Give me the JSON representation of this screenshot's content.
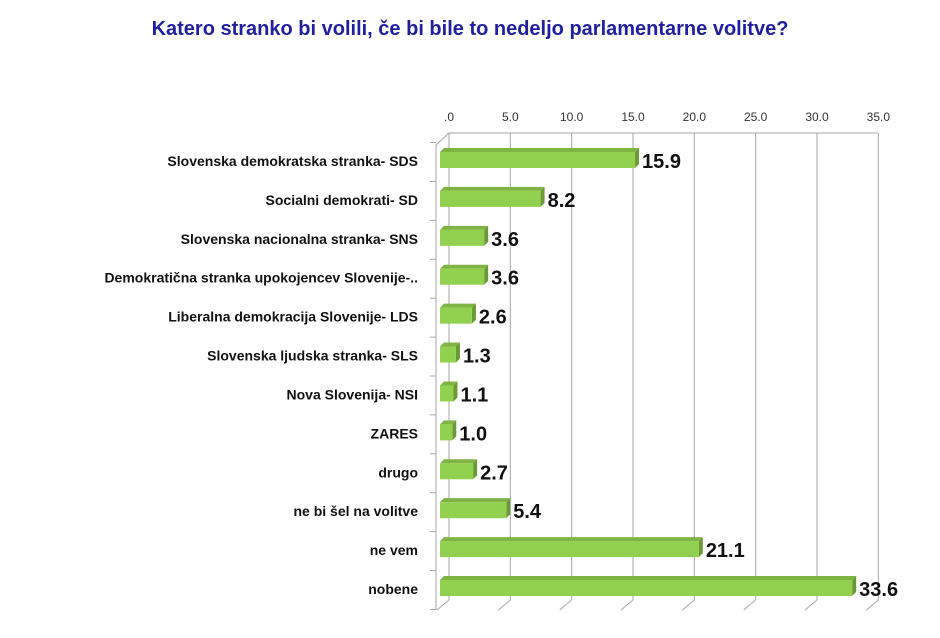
{
  "chart_data": {
    "type": "bar",
    "orientation": "horizontal",
    "title": "Katero stranko bi volili, če bi bile to nedeljo parlamentarne volitve?",
    "categories": [
      "Slovenska demokratska stranka- SDS",
      "Socialni demokrati- SD",
      "Slovenska nacionalna stranka- SNS",
      "Demokratična stranka upokojencev Slovenije-..",
      "Liberalna demokracija Slovenije- LDS",
      "Slovenska ljudska stranka- SLS",
      "Nova Slovenija- NSI",
      "ZARES",
      "drugo",
      "ne bi šel na volitve",
      "ne vem",
      "nobene"
    ],
    "values": [
      15.9,
      8.2,
      3.6,
      3.6,
      2.6,
      1.3,
      1.1,
      1.0,
      2.7,
      5.4,
      21.1,
      33.6
    ],
    "value_labels": [
      "15.9",
      "8.2",
      "3.6",
      "3.6",
      "2.6",
      "1.3",
      "1.1",
      "1.0",
      "2.7",
      "5.4",
      "21.1",
      "33.6"
    ],
    "xlim": [
      0,
      35
    ],
    "ticks": [
      ".0",
      "5.0",
      "10.0",
      "15.0",
      "20.0",
      "25.0",
      "30.0",
      "35.0"
    ],
    "tick_values": [
      0,
      5,
      10,
      15,
      20,
      25,
      30,
      35
    ],
    "axis_position": "top",
    "grid": true,
    "colors": {
      "bar": "#92d050",
      "bar_side": "#6a9a34",
      "bar_top": "#7fb343",
      "title": "#1f1fa0",
      "grid": "#a6a6a6"
    }
  }
}
